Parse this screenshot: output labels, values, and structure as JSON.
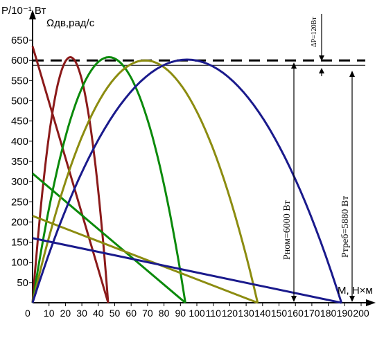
{
  "chart_data": {
    "type": "line",
    "y_axis_label": "P/10⁻¹,Вт",
    "y2_axis_label": "Ωдв,рад/с",
    "x_axis_label": "M, H×м",
    "x_ticks": [
      "0",
      "10",
      "20",
      "30",
      "40",
      "50",
      "60",
      "70",
      "80",
      "90",
      "100",
      "110",
      "120",
      "130",
      "140",
      "150",
      "160",
      "170",
      "180",
      "190",
      "200"
    ],
    "y_ticks": [
      "50",
      "100",
      "150",
      "200",
      "250",
      "300",
      "350",
      "400",
      "450",
      "500",
      "550",
      "600",
      "650"
    ],
    "xlim": [
      0,
      200
    ],
    "ylim": [
      0,
      670
    ],
    "grid": false,
    "reference_lines": [
      {
        "y": 600,
        "style": "dashed",
        "color": "#000000"
      },
      {
        "y": 588,
        "style": "solid",
        "color": "#000000"
      }
    ],
    "annotations": {
      "delta_p": "ΔP=120Вт",
      "p_nom": "Pном=6000 Вт",
      "p_req": "Pтреб=5880 Вт"
    },
    "series": [
      {
        "color": "#8b1a1a",
        "power_peak_x": 23,
        "power_peak_y": 608,
        "power_end_x": 46,
        "speed_start_y": 635,
        "speed_end_x": 46
      },
      {
        "color": "#0b8a0b",
        "power_peak_x": 47,
        "power_peak_y": 608,
        "power_end_x": 93,
        "speed_start_y": 320,
        "speed_end_x": 93
      },
      {
        "color": "#8c8c10",
        "power_peak_x": 69,
        "power_peak_y": 600,
        "power_end_x": 137,
        "speed_start_y": 215,
        "speed_end_x": 137
      },
      {
        "color": "#1a1a8c",
        "power_peak_x": 95,
        "power_peak_y": 602,
        "power_end_x": 188,
        "speed_start_y": 160,
        "speed_end_x": 188
      }
    ]
  }
}
